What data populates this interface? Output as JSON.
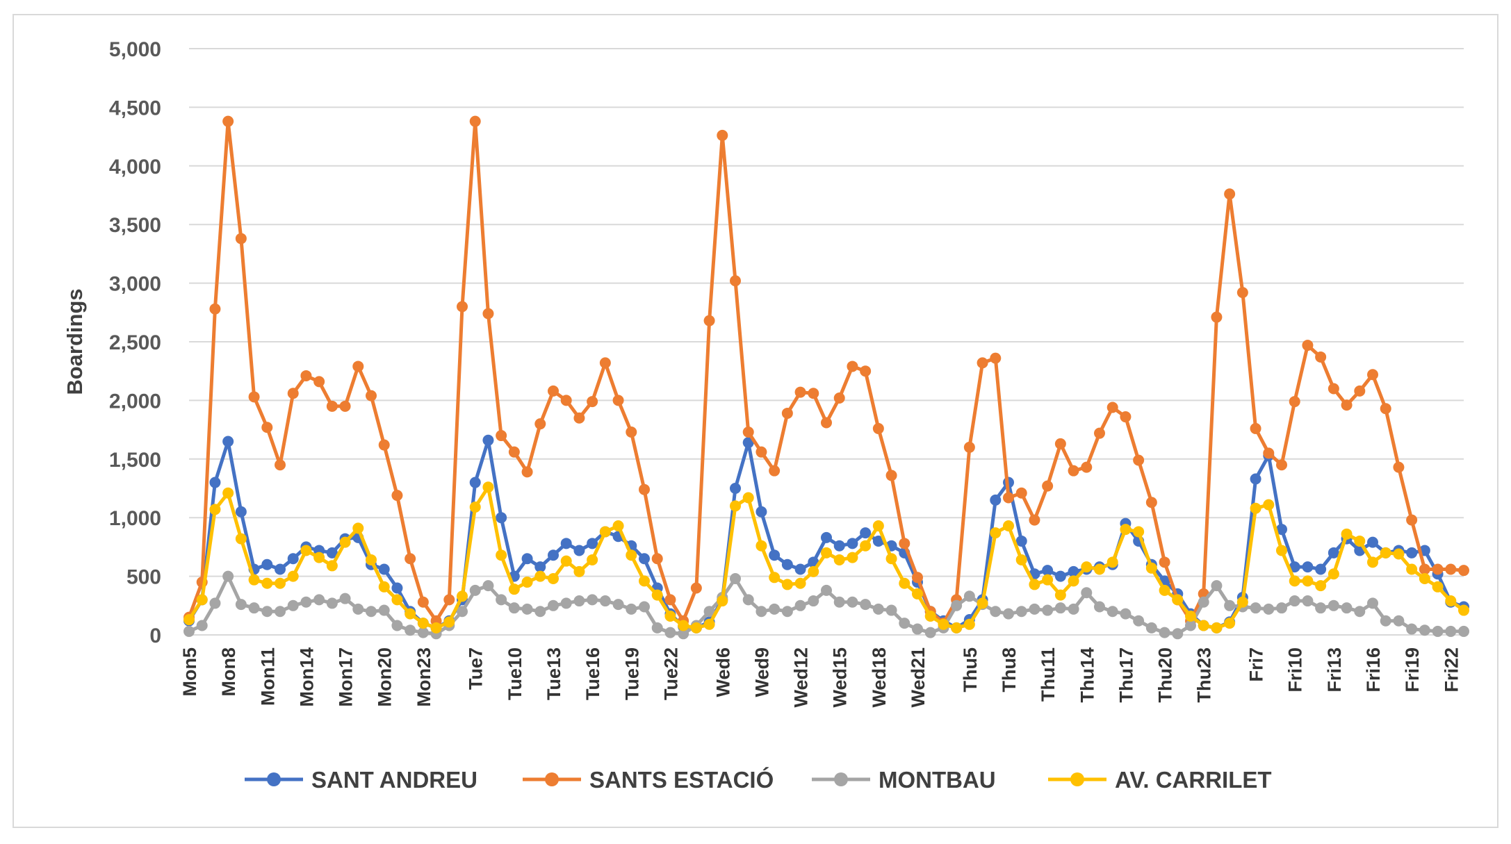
{
  "colors": {
    "sant_andreu": "#4472C4",
    "sants_estacio": "#ED7D31",
    "montbau": "#A5A5A5",
    "av_carrilet": "#FFC000",
    "grid": "#d9d9d9"
  },
  "chart_data": {
    "type": "line",
    "title": "",
    "xlabel": "",
    "ylabel": "Boardings",
    "ylim": [
      0,
      5000
    ],
    "yticks": [
      0,
      500,
      1000,
      1500,
      2000,
      2500,
      3000,
      3500,
      4000,
      4500,
      5000
    ],
    "ytick_labels": [
      "0",
      "500",
      "1,000",
      "1,500",
      "2,000",
      "2,500",
      "3,000",
      "3,500",
      "4,000",
      "4,500",
      "5,000"
    ],
    "grid": true,
    "legend_position": "bottom",
    "categories": [
      "Mon5",
      "Mon6",
      "Mon7",
      "Mon8",
      "Mon9",
      "Mon10",
      "Mon11",
      "Mon12",
      "Mon13",
      "Mon14",
      "Mon15",
      "Mon16",
      "Mon17",
      "Mon18",
      "Mon19",
      "Mon20",
      "Mon21",
      "Mon22",
      "Mon23",
      "Mon24",
      "Tue5",
      "Tue6",
      "Tue7",
      "Tue8",
      "Tue9",
      "Tue10",
      "Tue11",
      "Tue12",
      "Tue13",
      "Tue14",
      "Tue15",
      "Tue16",
      "Tue17",
      "Tue18",
      "Tue19",
      "Tue20",
      "Tue21",
      "Tue22",
      "Tue23",
      "Tue24",
      "Wed5",
      "Wed6",
      "Wed7",
      "Wed8",
      "Wed9",
      "Wed10",
      "Wed11",
      "Wed12",
      "Wed13",
      "Wed14",
      "Wed15",
      "Wed16",
      "Wed17",
      "Wed18",
      "Wed19",
      "Wed20",
      "Wed21",
      "Wed22",
      "Wed23",
      "Wed24",
      "Thu5",
      "Thu6",
      "Thu7",
      "Thu8",
      "Thu9",
      "Thu10",
      "Thu11",
      "Thu12",
      "Thu13",
      "Thu14",
      "Thu15",
      "Thu16",
      "Thu17",
      "Thu18",
      "Thu19",
      "Thu20",
      "Thu21",
      "Thu22",
      "Thu23",
      "Thu24",
      "Fri5",
      "Fri6",
      "Fri7",
      "Fri8",
      "Fri9",
      "Fri10",
      "Fri11",
      "Fri12",
      "Fri13",
      "Fri14",
      "Fri15",
      "Fri16",
      "Fri17",
      "Fri18",
      "Fri19",
      "Fri20",
      "Fri21",
      "Fri22",
      "Fri23"
    ],
    "tick_labels": [
      {
        "index": 0,
        "label": "Mon5"
      },
      {
        "index": 3,
        "label": "Mon8"
      },
      {
        "index": 6,
        "label": "Mon11"
      },
      {
        "index": 9,
        "label": "Mon14"
      },
      {
        "index": 12,
        "label": "Mon17"
      },
      {
        "index": 15,
        "label": "Mon20"
      },
      {
        "index": 18,
        "label": "Mon23"
      },
      {
        "index": 22,
        "label": "Tue7"
      },
      {
        "index": 25,
        "label": "Tue10"
      },
      {
        "index": 28,
        "label": "Tue13"
      },
      {
        "index": 31,
        "label": "Tue16"
      },
      {
        "index": 34,
        "label": "Tue19"
      },
      {
        "index": 37,
        "label": "Tue22"
      },
      {
        "index": 41,
        "label": "Wed6"
      },
      {
        "index": 44,
        "label": "Wed9"
      },
      {
        "index": 47,
        "label": "Wed12"
      },
      {
        "index": 50,
        "label": "Wed15"
      },
      {
        "index": 53,
        "label": "Wed18"
      },
      {
        "index": 56,
        "label": "Wed21"
      },
      {
        "index": 60,
        "label": "Thu5"
      },
      {
        "index": 63,
        "label": "Thu8"
      },
      {
        "index": 66,
        "label": "Thu11"
      },
      {
        "index": 69,
        "label": "Thu14"
      },
      {
        "index": 72,
        "label": "Thu17"
      },
      {
        "index": 75,
        "label": "Thu20"
      },
      {
        "index": 78,
        "label": "Thu23"
      },
      {
        "index": 82,
        "label": "Fri7"
      },
      {
        "index": 85,
        "label": "Fri10"
      },
      {
        "index": 88,
        "label": "Fri13"
      },
      {
        "index": 91,
        "label": "Fri16"
      },
      {
        "index": 94,
        "label": "Fri19"
      },
      {
        "index": 97,
        "label": "Fri22"
      }
    ],
    "series": [
      {
        "name": "SANT ANDREU",
        "color_key": "sant_andreu",
        "values": [
          120,
          300,
          1300,
          1650,
          1050,
          560,
          600,
          560,
          650,
          750,
          720,
          700,
          820,
          830,
          600,
          560,
          400,
          200,
          100,
          60,
          120,
          300,
          1300,
          1660,
          1000,
          500,
          650,
          580,
          680,
          780,
          720,
          780,
          880,
          840,
          760,
          650,
          400,
          180,
          70,
          60,
          110,
          300,
          1250,
          1640,
          1050,
          680,
          600,
          560,
          620,
          830,
          760,
          780,
          870,
          800,
          760,
          700,
          450,
          200,
          120,
          60,
          130,
          300,
          1150,
          1300,
          800,
          520,
          550,
          500,
          540,
          560,
          580,
          600,
          950,
          800,
          600,
          460,
          350,
          180,
          80,
          60,
          110,
          320,
          1330,
          1530,
          900,
          580,
          580,
          560,
          700,
          820,
          720,
          790,
          700,
          720,
          700,
          720,
          520,
          280,
          240
        ]
      },
      {
        "name": "SANTS ESTACIÓ",
        "color_key": "sants_estacio",
        "values": [
          150,
          450,
          2780,
          4380,
          3380,
          2030,
          1770,
          1450,
          2060,
          2210,
          2160,
          1950,
          1950,
          2290,
          2040,
          1620,
          1190,
          650,
          280,
          120,
          300,
          2800,
          4380,
          2740,
          1700,
          1560,
          1390,
          1800,
          2080,
          2000,
          1850,
          1990,
          2320,
          2000,
          1730,
          1240,
          650,
          300,
          120,
          400,
          2680,
          4260,
          3020,
          1730,
          1560,
          1400,
          1890,
          2070,
          2060,
          1810,
          2020,
          2290,
          2250,
          1760,
          1360,
          780,
          490,
          200,
          100,
          300,
          1600,
          2320,
          2360,
          1170,
          1210,
          980,
          1270,
          1630,
          1400,
          1430,
          1720,
          1940,
          1860,
          1490,
          1130,
          620,
          300,
          120,
          350,
          2710,
          3760,
          2920,
          1760,
          1550,
          1450,
          1990,
          2470,
          2370,
          2100,
          1960,
          2080,
          2220,
          1930,
          1430,
          980,
          560,
          560,
          560,
          550
        ]
      },
      {
        "name": "MONTBAU",
        "color_key": "montbau",
        "values": [
          30,
          80,
          270,
          500,
          260,
          230,
          200,
          200,
          250,
          280,
          300,
          270,
          310,
          220,
          200,
          210,
          80,
          40,
          20,
          10,
          80,
          200,
          380,
          420,
          300,
          230,
          220,
          200,
          250,
          270,
          290,
          300,
          290,
          260,
          220,
          240,
          60,
          20,
          10,
          80,
          200,
          320,
          480,
          300,
          200,
          220,
          200,
          250,
          290,
          380,
          280,
          280,
          260,
          220,
          210,
          100,
          50,
          20,
          60,
          250,
          330,
          260,
          200,
          180,
          200,
          220,
          210,
          230,
          220,
          360,
          240,
          200,
          180,
          120,
          60,
          20,
          10,
          80,
          280,
          420,
          250,
          240,
          230,
          220,
          230,
          290,
          290,
          230,
          250,
          230,
          200,
          270,
          120,
          120,
          50,
          40,
          30,
          30,
          30
        ]
      },
      {
        "name": "AV. CARRILET",
        "color_key": "av_carrilet",
        "values": [
          130,
          300,
          1070,
          1210,
          820,
          470,
          440,
          440,
          500,
          720,
          660,
          590,
          790,
          910,
          640,
          410,
          300,
          180,
          100,
          60,
          110,
          330,
          1090,
          1260,
          680,
          390,
          450,
          500,
          480,
          630,
          540,
          640,
          880,
          930,
          680,
          460,
          340,
          160,
          80,
          60,
          90,
          290,
          1100,
          1170,
          760,
          490,
          430,
          440,
          540,
          700,
          640,
          660,
          760,
          930,
          650,
          440,
          350,
          160,
          90,
          60,
          90,
          270,
          870,
          930,
          640,
          430,
          470,
          340,
          460,
          580,
          560,
          620,
          900,
          880,
          570,
          380,
          300,
          160,
          80,
          60,
          100,
          280,
          1080,
          1110,
          720,
          460,
          460,
          420,
          520,
          860,
          800,
          620,
          700,
          690,
          560,
          480,
          410,
          290,
          210
        ]
      }
    ]
  }
}
